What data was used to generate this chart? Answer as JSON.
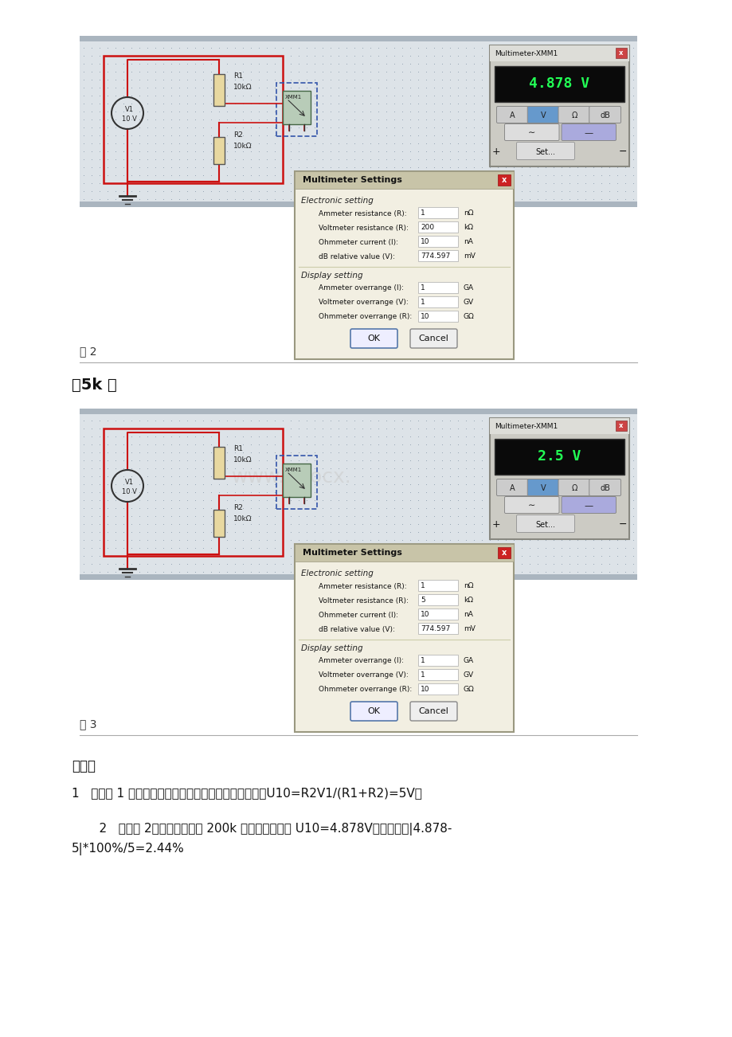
{
  "bg_color": "#ffffff",
  "fig1_value": "4.878 V",
  "fig2_value": "2.5 V",
  "label_fig2": "图 2",
  "label_fig3": "图 3",
  "label_5k": "【5k 】",
  "analysis_title": "分析：",
  "analysis_line1": "1   根据图 1 电路分析，如果不考虑电压表内阵的影响，U10=R2V1/(R1+R2)=5V；",
  "analysis_line2a": "    2   根据图 2，电压表内阵为 200k 时，电压表示数 U10=4.878V，相对误差|4.878-",
  "analysis_line2b": "5|*100%/5=2.44%",
  "fig1_electronic": [
    [
      "Ammeter resistance (R):",
      "1",
      "nΩ"
    ],
    [
      "Voltmeter resistance (R):",
      "200",
      "kΩ"
    ],
    [
      "Ohmmeter current (I):",
      "10",
      "nA"
    ],
    [
      "dB relative value (V):",
      "774.597",
      "mV"
    ]
  ],
  "fig1_display": [
    [
      "Ammeter overrange (I):",
      "1",
      "GA"
    ],
    [
      "Voltmeter overrange (V):",
      "1",
      "GV"
    ],
    [
      "Ohmmeter overrange (R):",
      "10",
      "GΩ"
    ]
  ],
  "fig2_electronic": [
    [
      "Ammeter resistance (R):",
      "1",
      "nΩ"
    ],
    [
      "Voltmeter resistance (R):",
      "5",
      "kΩ"
    ],
    [
      "Ohmmeter current (I):",
      "10",
      "nA"
    ],
    [
      "dB relative value (V):",
      "774.597",
      "mV"
    ]
  ],
  "fig2_display": [
    [
      "Ammeter overrange (I):",
      "1",
      "GA"
    ],
    [
      "Voltmeter overrange (V):",
      "1",
      "GV"
    ],
    [
      "Ohmmeter overrange (R):",
      "10",
      "GΩ"
    ]
  ]
}
